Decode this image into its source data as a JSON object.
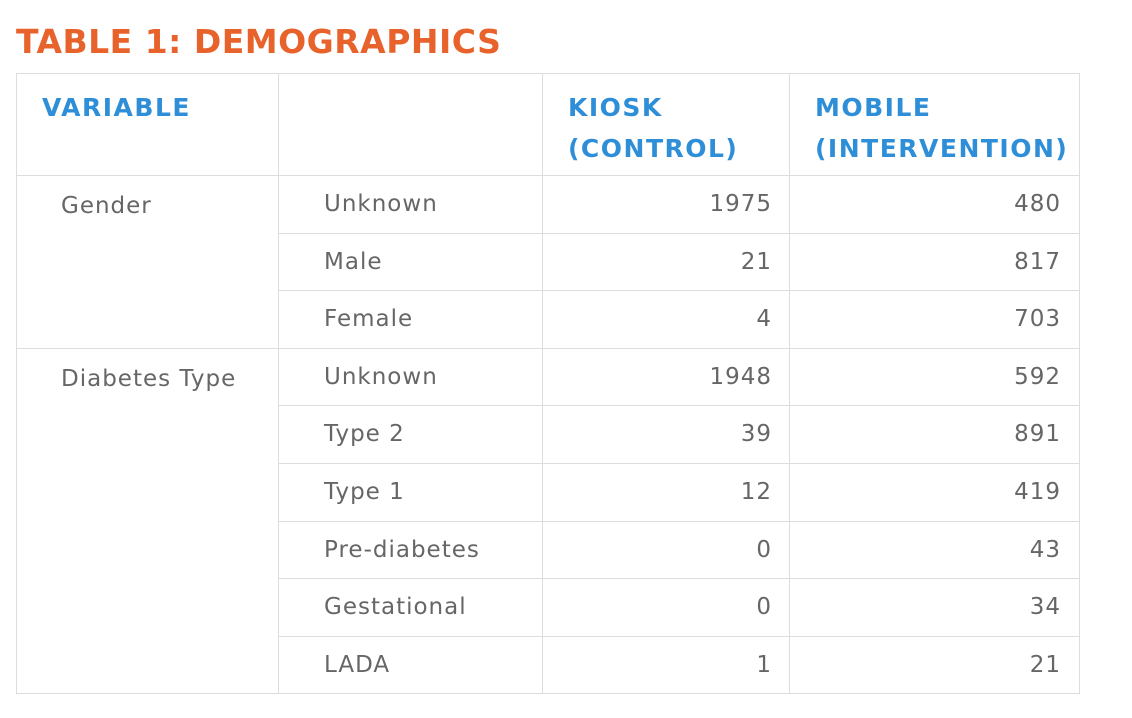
{
  "title": "TABLE 1: DEMOGRAPHICS",
  "colors": {
    "title": "#E8632C",
    "header": "#2E8FD8",
    "body_text": "#666666",
    "border": "#DDDDDD"
  },
  "table": {
    "headers": {
      "variable": "VARIABLE",
      "subcategory": "",
      "kiosk_line1": "KIOSK",
      "kiosk_line2": "(CONTROL)",
      "mobile_line1": "MOBILE",
      "mobile_line2": "(INTERVENTION)"
    },
    "groups": [
      {
        "name": "Gender",
        "rows": [
          {
            "label": "Unknown",
            "kiosk": "1975",
            "mobile": "480"
          },
          {
            "label": "Male",
            "kiosk": "21",
            "mobile": "817"
          },
          {
            "label": "Female",
            "kiosk": "4",
            "mobile": "703"
          }
        ]
      },
      {
        "name": "Diabetes Type",
        "rows": [
          {
            "label": "Unknown",
            "kiosk": "1948",
            "mobile": "592"
          },
          {
            "label": "Type 2",
            "kiosk": "39",
            "mobile": "891"
          },
          {
            "label": "Type 1",
            "kiosk": "12",
            "mobile": "419"
          },
          {
            "label": "Pre-diabetes",
            "kiosk": "0",
            "mobile": "43"
          },
          {
            "label": "Gestational",
            "kiosk": "0",
            "mobile": "34"
          },
          {
            "label": "LADA",
            "kiosk": "1",
            "mobile": "21"
          }
        ]
      }
    ]
  }
}
